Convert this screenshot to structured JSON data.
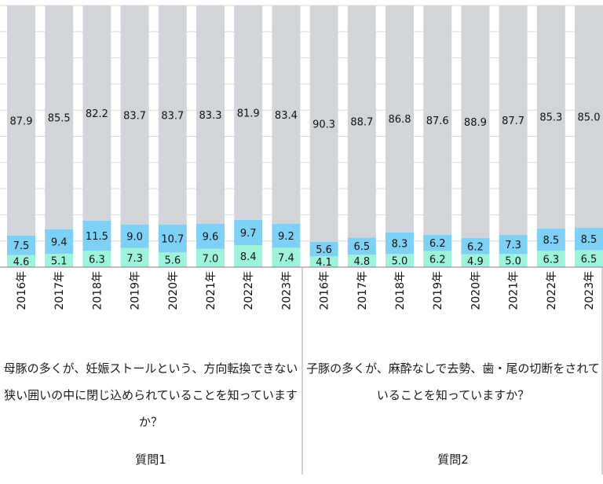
{
  "chart_data": {
    "type": "bar",
    "stacked": true,
    "normalized": true,
    "ylim": [
      0,
      100
    ],
    "grid": true,
    "colors": {
      "bottom": "#9ff2dc",
      "middle": "#7fd0f5",
      "top": "#d1d5da"
    },
    "groups": [
      {
        "question": "母豚の多くが、妊娠ストールという、方向転換できない狭い囲いの中に閉じ込められていることを知っていますか？",
        "label": "質問1",
        "categories": [
          "2016年",
          "2017年",
          "2018年",
          "2019年",
          "2020年",
          "2021年",
          "2022年",
          "2023年"
        ],
        "series": [
          {
            "values": [
              4.6,
              5.1,
              6.3,
              7.3,
              5.6,
              7.0,
              8.4,
              7.4
            ]
          },
          {
            "values": [
              7.5,
              9.4,
              11.5,
              9.0,
              10.7,
              9.6,
              9.7,
              9.2
            ]
          },
          {
            "values": [
              87.9,
              85.5,
              82.2,
              83.7,
              83.7,
              83.3,
              81.9,
              83.4
            ]
          }
        ]
      },
      {
        "question": "子豚の多くが、麻酔なしで去勢、歯・尾の切断をされていることを知っていますか？",
        "label": "質問2",
        "categories": [
          "2016年",
          "2017年",
          "2018年",
          "2019年",
          "2020年",
          "2021年",
          "2022年",
          "2023年"
        ],
        "series": [
          {
            "values": [
              4.1,
              4.8,
              5.0,
              6.2,
              4.9,
              5.0,
              6.3,
              6.5
            ]
          },
          {
            "values": [
              5.6,
              6.5,
              8.3,
              6.2,
              6.2,
              7.3,
              8.5,
              8.5
            ]
          },
          {
            "values": [
              90.3,
              88.7,
              86.8,
              87.6,
              88.9,
              87.7,
              85.3,
              85.0
            ]
          }
        ]
      }
    ]
  }
}
